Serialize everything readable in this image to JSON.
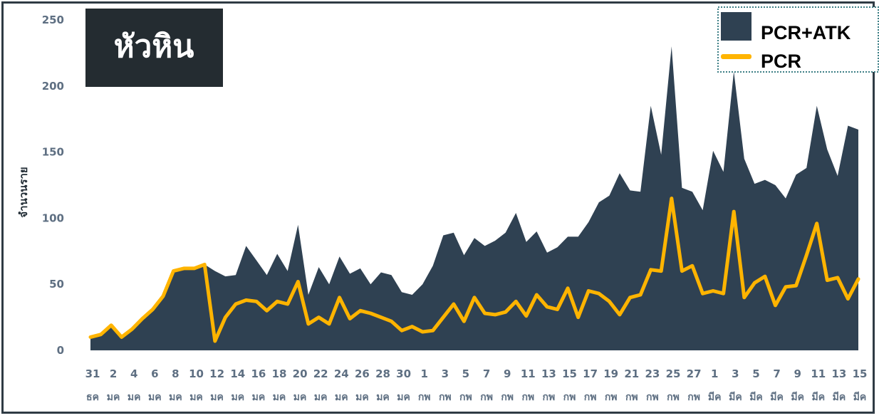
{
  "chart_data": {
    "type": "area",
    "title": "หัวหิน",
    "ylabel": "จำนวนราย",
    "ylim": [
      0,
      250
    ],
    "yticks": [
      0,
      50,
      100,
      150,
      200,
      250
    ],
    "legend_position": "top-right",
    "x_tick_days": [
      "31",
      "2",
      "4",
      "6",
      "8",
      "10",
      "12",
      "14",
      "16",
      "18",
      "20",
      "22",
      "24",
      "26",
      "28",
      "30",
      "1",
      "3",
      "5",
      "7",
      "9",
      "11",
      "13",
      "15",
      "17",
      "19",
      "21",
      "23",
      "25",
      "27",
      "1",
      "3",
      "5",
      "7",
      "9",
      "11",
      "13",
      "15"
    ],
    "x_tick_months": [
      "ธค",
      "มค",
      "มค",
      "มค",
      "มค",
      "มค",
      "มค",
      "มค",
      "มค",
      "มค",
      "มค",
      "มค",
      "มค",
      "มค",
      "มค",
      "มค",
      "กพ",
      "กพ",
      "กพ",
      "กพ",
      "กพ",
      "กพ",
      "กพ",
      "กพ",
      "กพ",
      "กพ",
      "กพ",
      "กพ",
      "กพ",
      "กพ",
      "มีค",
      "มีค",
      "มีค",
      "มีค",
      "มีค",
      "มีค",
      "มีค",
      "มีค"
    ],
    "x_start": "31 ธค",
    "x_end": "15 มีค",
    "series": [
      {
        "name": "PCR+ATK",
        "style": "area",
        "color": "#2f4152",
        "values": [
          10,
          12,
          18,
          10,
          15,
          24,
          30,
          40,
          60,
          62,
          62,
          65,
          60,
          56,
          57,
          79,
          68,
          57,
          73,
          60,
          95,
          42,
          63,
          50,
          71,
          58,
          62,
          50,
          59,
          57,
          44,
          42,
          50,
          64,
          87,
          89,
          72,
          85,
          79,
          83,
          89,
          104,
          82,
          90,
          74,
          78,
          86,
          86,
          97,
          112,
          117,
          134,
          121,
          120,
          185,
          148,
          230,
          123,
          120,
          106,
          151,
          135,
          211,
          145,
          126,
          129,
          125,
          115,
          133,
          138,
          185,
          152,
          132,
          170,
          167
        ]
      },
      {
        "name": "PCR",
        "style": "line",
        "color": "#ffb400",
        "values": [
          10,
          12,
          19,
          10,
          16,
          24,
          31,
          41,
          60,
          62,
          62,
          65,
          7,
          25,
          35,
          38,
          37,
          30,
          37,
          35,
          52,
          20,
          25,
          20,
          40,
          24,
          30,
          28,
          25,
          22,
          15,
          18,
          14,
          15,
          25,
          35,
          22,
          40,
          28,
          27,
          29,
          37,
          26,
          42,
          33,
          31,
          47,
          25,
          45,
          43,
          37,
          27,
          40,
          42,
          61,
          60,
          115,
          60,
          64,
          43,
          45,
          43,
          105,
          40,
          51,
          56,
          34,
          48,
          49,
          72,
          96,
          53,
          55,
          39,
          54
        ]
      }
    ]
  }
}
